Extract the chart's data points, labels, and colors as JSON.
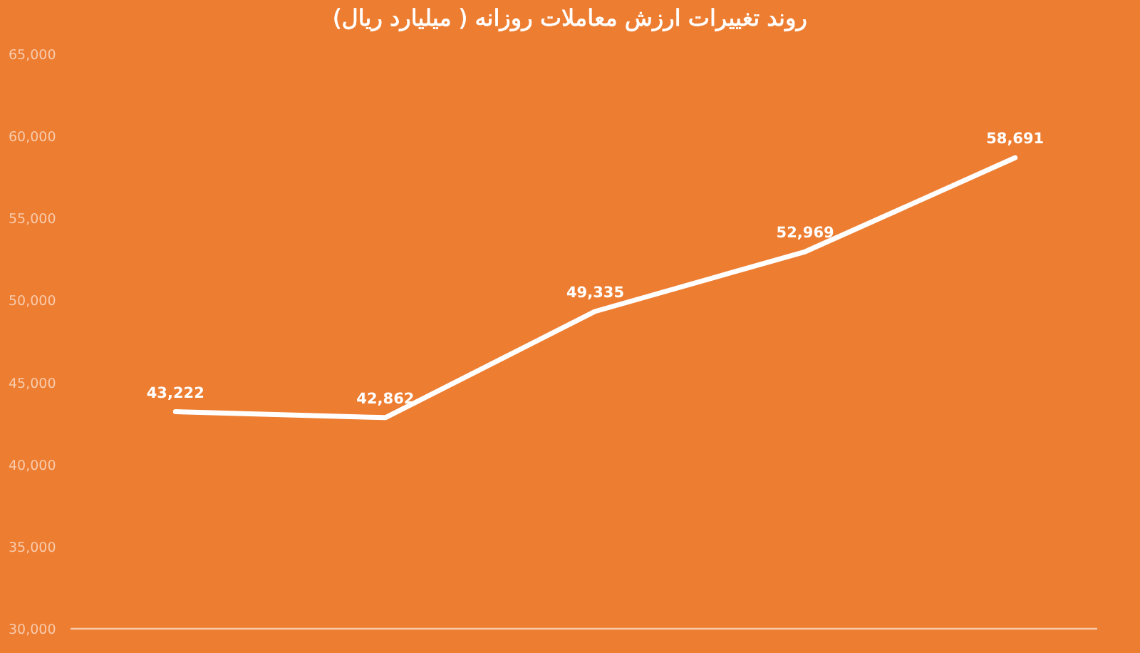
{
  "chart_data": {
    "type": "line",
    "title": "روند تغییرات ارزش معاملات روزانه ( میلیارد ریال)",
    "categories": [
      null,
      null,
      null,
      null,
      null
    ],
    "series": [
      {
        "color": "#ffffff",
        "values": [
          43222,
          42862,
          49335,
          52969,
          58691
        ],
        "value_labels": [
          "43,222",
          "42,862",
          "49,335",
          "52,969",
          "58,691"
        ]
      }
    ],
    "ylim": [
      30000,
      65000
    ],
    "yticks": [
      {
        "value": 30000,
        "label": "30,000"
      },
      {
        "value": 35000,
        "label": "35,000"
      },
      {
        "value": 40000,
        "label": "40,000"
      },
      {
        "value": 45000,
        "label": "45,000"
      },
      {
        "value": 50000,
        "label": "50,000"
      },
      {
        "value": 55000,
        "label": "55,000"
      },
      {
        "value": 60000,
        "label": "60,000"
      },
      {
        "value": 65000,
        "label": "65,000"
      }
    ],
    "grid": false,
    "marker": "none",
    "line_style": "solid"
  }
}
